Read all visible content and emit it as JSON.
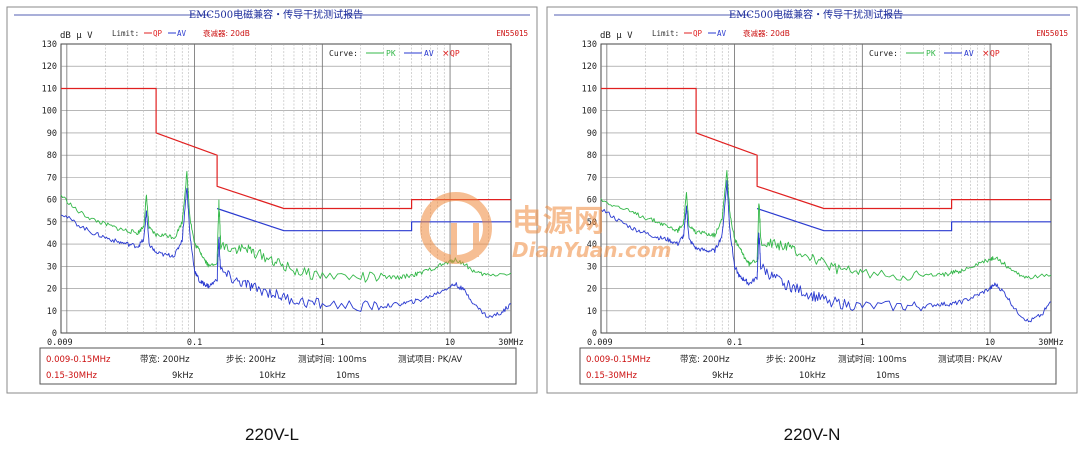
{
  "chart_data": [
    {
      "type": "line",
      "title": "EMC500电磁兼容・传导干扰测试报告",
      "standard": "EN55015",
      "ylabel": "dB μ V",
      "xlabel": "",
      "x_scale": "log",
      "xlim": [
        0.009,
        30
      ],
      "ylim": [
        0,
        130
      ],
      "x_ticks": [
        "0.009",
        "0.1",
        "1",
        "10",
        "30MHz"
      ],
      "y_ticks": [
        "0",
        "10",
        "20",
        "30",
        "40",
        "50",
        "60",
        "70",
        "80",
        "90",
        "100",
        "110",
        "120",
        "130"
      ],
      "grid": true,
      "limit_legend": {
        "label": "Limit:",
        "qp": "QP",
        "av": "AV",
        "amplifier": "衰减器: 20dB"
      },
      "curve_legend": {
        "label": "Curve:",
        "pk": "PK",
        "av": "AV",
        "qp": "QP"
      },
      "series": [
        {
          "name": "QP",
          "role": "limit",
          "color": "#e02020",
          "points": [
            [
              0.009,
              110
            ],
            [
              0.05,
              110
            ],
            [
              0.05,
              90
            ],
            [
              0.15,
              80
            ],
            [
              0.15,
              66
            ],
            [
              0.5,
              56
            ],
            [
              5,
              56
            ],
            [
              5,
              60
            ],
            [
              30,
              60
            ]
          ]
        },
        {
          "name": "AV",
          "role": "limit",
          "color": "#2a3ad0",
          "points": [
            [
              0.15,
              56
            ],
            [
              0.5,
              46
            ],
            [
              5,
              46
            ],
            [
              5,
              50
            ],
            [
              30,
              50
            ]
          ]
        },
        {
          "name": "PK",
          "role": "curve",
          "color": "#35b84a",
          "points": [
            [
              0.009,
              62
            ],
            [
              0.012,
              55
            ],
            [
              0.016,
              51
            ],
            [
              0.02,
              49
            ],
            [
              0.025,
              47
            ],
            [
              0.03,
              46
            ],
            [
              0.036,
              45
            ],
            [
              0.04,
              48
            ],
            [
              0.042,
              62
            ],
            [
              0.044,
              47
            ],
            [
              0.05,
              44
            ],
            [
              0.06,
              44
            ],
            [
              0.07,
              43
            ],
            [
              0.08,
              50
            ],
            [
              0.087,
              72
            ],
            [
              0.092,
              52
            ],
            [
              0.1,
              40
            ],
            [
              0.11,
              37
            ],
            [
              0.12,
              33
            ],
            [
              0.13,
              30
            ],
            [
              0.15,
              32
            ],
            [
              0.155,
              58
            ],
            [
              0.16,
              40
            ],
            [
              0.2,
              38
            ],
            [
              0.25,
              38
            ],
            [
              0.3,
              36
            ],
            [
              0.4,
              33
            ],
            [
              0.5,
              30
            ],
            [
              0.7,
              27
            ],
            [
              1,
              26
            ],
            [
              2,
              25
            ],
            [
              3,
              25
            ],
            [
              4,
              25
            ],
            [
              5,
              26
            ],
            [
              6,
              27
            ],
            [
              8,
              30
            ],
            [
              10,
              32
            ],
            [
              11,
              33
            ],
            [
              13,
              31
            ],
            [
              16,
              27
            ],
            [
              20,
              26
            ],
            [
              30,
              27
            ]
          ]
        },
        {
          "name": "AV",
          "role": "curve",
          "color": "#2a3ad0",
          "points": [
            [
              0.009,
              54
            ],
            [
              0.012,
              49
            ],
            [
              0.016,
              45
            ],
            [
              0.02,
              43
            ],
            [
              0.025,
              41
            ],
            [
              0.03,
              40
            ],
            [
              0.036,
              39
            ],
            [
              0.04,
              42
            ],
            [
              0.042,
              55
            ],
            [
              0.044,
              40
            ],
            [
              0.05,
              36
            ],
            [
              0.06,
              35
            ],
            [
              0.07,
              35
            ],
            [
              0.08,
              42
            ],
            [
              0.087,
              66
            ],
            [
              0.092,
              44
            ],
            [
              0.1,
              28
            ],
            [
              0.11,
              23
            ],
            [
              0.12,
              22
            ],
            [
              0.13,
              21
            ],
            [
              0.15,
              24
            ],
            [
              0.155,
              43
            ],
            [
              0.16,
              28
            ],
            [
              0.2,
              24
            ],
            [
              0.25,
              22
            ],
            [
              0.3,
              20
            ],
            [
              0.4,
              18
            ],
            [
              0.5,
              16
            ],
            [
              0.7,
              14
            ],
            [
              1,
              13
            ],
            [
              2,
              12
            ],
            [
              3,
              12
            ],
            [
              4,
              13
            ],
            [
              5,
              14
            ],
            [
              6,
              15
            ],
            [
              8,
              18
            ],
            [
              10,
              21
            ],
            [
              11,
              22
            ],
            [
              13,
              19
            ],
            [
              16,
              12
            ],
            [
              20,
              7
            ],
            [
              25,
              9
            ],
            [
              30,
              13
            ]
          ]
        }
      ],
      "footer": {
        "row1": [
          "0.009-0.15MHz",
          "带宽: 200Hz",
          "步长: 200Hz",
          "测试时间: 100ms",
          "测试项目: PK/AV"
        ],
        "row2": [
          "0.15-30MHz",
          "9kHz",
          "10kHz",
          "10ms"
        ]
      }
    },
    {
      "type": "line",
      "title": "EMC500电磁兼容・传导干扰测试报告",
      "standard": "EN55015",
      "ylabel": "dB μ V",
      "xlabel": "",
      "x_scale": "log",
      "xlim": [
        0.009,
        30
      ],
      "ylim": [
        0,
        130
      ],
      "x_ticks": [
        "0.009",
        "0.1",
        "1",
        "10",
        "30MHz"
      ],
      "y_ticks": [
        "0",
        "10",
        "20",
        "30",
        "40",
        "50",
        "60",
        "70",
        "80",
        "90",
        "100",
        "110",
        "120",
        "130"
      ],
      "grid": true,
      "limit_legend": {
        "label": "Limit:",
        "qp": "QP",
        "av": "AV",
        "amplifier": "衰减器: 20dB"
      },
      "curve_legend": {
        "label": "Curve:",
        "pk": "PK",
        "av": "AV",
        "qp": "QP"
      },
      "series": [
        {
          "name": "QP",
          "role": "limit",
          "color": "#e02020",
          "points": [
            [
              0.009,
              110
            ],
            [
              0.05,
              110
            ],
            [
              0.05,
              90
            ],
            [
              0.15,
              80
            ],
            [
              0.15,
              66
            ],
            [
              0.5,
              56
            ],
            [
              5,
              56
            ],
            [
              5,
              60
            ],
            [
              30,
              60
            ]
          ]
        },
        {
          "name": "AV",
          "role": "limit",
          "color": "#2a3ad0",
          "points": [
            [
              0.15,
              56
            ],
            [
              0.5,
              46
            ],
            [
              5,
              46
            ],
            [
              5,
              50
            ],
            [
              30,
              50
            ]
          ]
        },
        {
          "name": "PK",
          "role": "curve",
          "color": "#35b84a",
          "points": [
            [
              0.009,
              60
            ],
            [
              0.012,
              57
            ],
            [
              0.016,
              54
            ],
            [
              0.02,
              52
            ],
            [
              0.025,
              50
            ],
            [
              0.03,
              48
            ],
            [
              0.036,
              46
            ],
            [
              0.04,
              50
            ],
            [
              0.042,
              63
            ],
            [
              0.044,
              48
            ],
            [
              0.05,
              45
            ],
            [
              0.06,
              45
            ],
            [
              0.07,
              44
            ],
            [
              0.08,
              52
            ],
            [
              0.087,
              73
            ],
            [
              0.092,
              54
            ],
            [
              0.1,
              42
            ],
            [
              0.11,
              38
            ],
            [
              0.12,
              34
            ],
            [
              0.13,
              31
            ],
            [
              0.15,
              33
            ],
            [
              0.155,
              60
            ],
            [
              0.16,
              42
            ],
            [
              0.2,
              40
            ],
            [
              0.25,
              39
            ],
            [
              0.3,
              37
            ],
            [
              0.4,
              34
            ],
            [
              0.5,
              31
            ],
            [
              0.7,
              28
            ],
            [
              1,
              27
            ],
            [
              2,
              26
            ],
            [
              3,
              26
            ],
            [
              4,
              26
            ],
            [
              5,
              27
            ],
            [
              6,
              28
            ],
            [
              8,
              31
            ],
            [
              10,
              33
            ],
            [
              11,
              34
            ],
            [
              13,
              31
            ],
            [
              16,
              27
            ],
            [
              20,
              25
            ],
            [
              30,
              26
            ]
          ]
        },
        {
          "name": "AV",
          "role": "curve",
          "color": "#2a3ad0",
          "points": [
            [
              0.009,
              56
            ],
            [
              0.012,
              51
            ],
            [
              0.016,
              47
            ],
            [
              0.02,
              45
            ],
            [
              0.025,
              43
            ],
            [
              0.03,
              42
            ],
            [
              0.036,
              40
            ],
            [
              0.04,
              44
            ],
            [
              0.042,
              57
            ],
            [
              0.044,
              42
            ],
            [
              0.05,
              38
            ],
            [
              0.06,
              37
            ],
            [
              0.07,
              37
            ],
            [
              0.08,
              44
            ],
            [
              0.087,
              68
            ],
            [
              0.092,
              46
            ],
            [
              0.1,
              30
            ],
            [
              0.11,
              25
            ],
            [
              0.12,
              24
            ],
            [
              0.13,
              22
            ],
            [
              0.15,
              25
            ],
            [
              0.155,
              45
            ],
            [
              0.16,
              30
            ],
            [
              0.2,
              25
            ],
            [
              0.25,
              22
            ],
            [
              0.3,
              20
            ],
            [
              0.4,
              17
            ],
            [
              0.5,
              15
            ],
            [
              0.7,
              13
            ],
            [
              1,
              12
            ],
            [
              2,
              12
            ],
            [
              3,
              12
            ],
            [
              4,
              13
            ],
            [
              5,
              13
            ],
            [
              6,
              14
            ],
            [
              8,
              17
            ],
            [
              10,
              20
            ],
            [
              11,
              22
            ],
            [
              13,
              18
            ],
            [
              16,
              10
            ],
            [
              20,
              5
            ],
            [
              25,
              8
            ],
            [
              30,
              14
            ]
          ]
        }
      ],
      "footer": {
        "row1": [
          "0.009-0.15MHz",
          "带宽: 200Hz",
          "步长: 200Hz",
          "测试时间: 100ms",
          "测试项目: PK/AV"
        ],
        "row2": [
          "0.15-30MHz",
          "9kHz",
          "10kHz",
          "10ms"
        ]
      }
    }
  ],
  "captions": [
    "220V-L",
    "220V-N"
  ],
  "watermark": {
    "cn": "电源网",
    "en": "DianYuan.com"
  },
  "colors": {
    "limit_qp": "#e02020",
    "limit_av": "#2a3ad0",
    "pk": "#35b84a",
    "av": "#2a3ad0"
  }
}
